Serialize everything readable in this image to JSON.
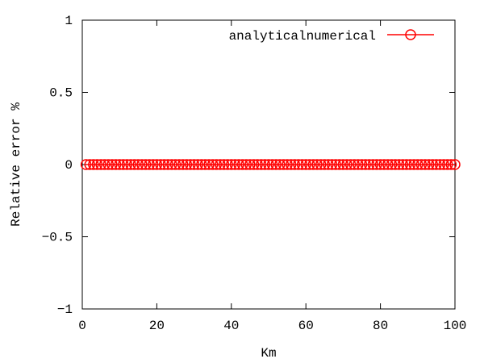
{
  "chart_data": {
    "type": "line",
    "xlabel": "Km",
    "ylabel": "Relative error %",
    "xlim": [
      0,
      100
    ],
    "ylim": [
      -1,
      1
    ],
    "x_ticks": [
      0,
      20,
      40,
      60,
      80,
      100
    ],
    "x_tick_labels": [
      "0",
      "20",
      "40",
      "60",
      "80",
      "100"
    ],
    "y_ticks": [
      -1,
      -0.5,
      0,
      0.5,
      1
    ],
    "y_tick_labels": [
      "−1",
      "−0.5",
      "0",
      "0.5",
      "1"
    ],
    "grid": false,
    "legend_position": "top-right",
    "series": [
      {
        "name": "analyticalnumerical",
        "color": "#ff0000",
        "marker": "circle",
        "x": [
          1,
          2,
          3,
          4,
          5,
          6,
          7,
          8,
          9,
          10,
          11,
          12,
          13,
          14,
          15,
          16,
          17,
          18,
          19,
          20,
          21,
          22,
          23,
          24,
          25,
          26,
          27,
          28,
          29,
          30,
          31,
          32,
          33,
          34,
          35,
          36,
          37,
          38,
          39,
          40,
          41,
          42,
          43,
          44,
          45,
          46,
          47,
          48,
          49,
          50,
          51,
          52,
          53,
          54,
          55,
          56,
          57,
          58,
          59,
          60,
          61,
          62,
          63,
          64,
          65,
          66,
          67,
          68,
          69,
          70,
          71,
          72,
          73,
          74,
          75,
          76,
          77,
          78,
          79,
          80,
          81,
          82,
          83,
          84,
          85,
          86,
          87,
          88,
          89,
          90,
          91,
          92,
          93,
          94,
          95,
          96,
          97,
          98,
          99,
          100
        ],
        "y": [
          0,
          0,
          0,
          0,
          0,
          0,
          0,
          0,
          0,
          0,
          0,
          0,
          0,
          0,
          0,
          0,
          0,
          0,
          0,
          0,
          0,
          0,
          0,
          0,
          0,
          0,
          0,
          0,
          0,
          0,
          0,
          0,
          0,
          0,
          0,
          0,
          0,
          0,
          0,
          0,
          0,
          0,
          0,
          0,
          0,
          0,
          0,
          0,
          0,
          0,
          0,
          0,
          0,
          0,
          0,
          0,
          0,
          0,
          0,
          0,
          0,
          0,
          0,
          0,
          0,
          0,
          0,
          0,
          0,
          0,
          0,
          0,
          0,
          0,
          0,
          0,
          0,
          0,
          0,
          0,
          0,
          0,
          0,
          0,
          0,
          0,
          0,
          0,
          0,
          0,
          0,
          0,
          0,
          0,
          0,
          0,
          0,
          0,
          0,
          0
        ]
      }
    ]
  }
}
